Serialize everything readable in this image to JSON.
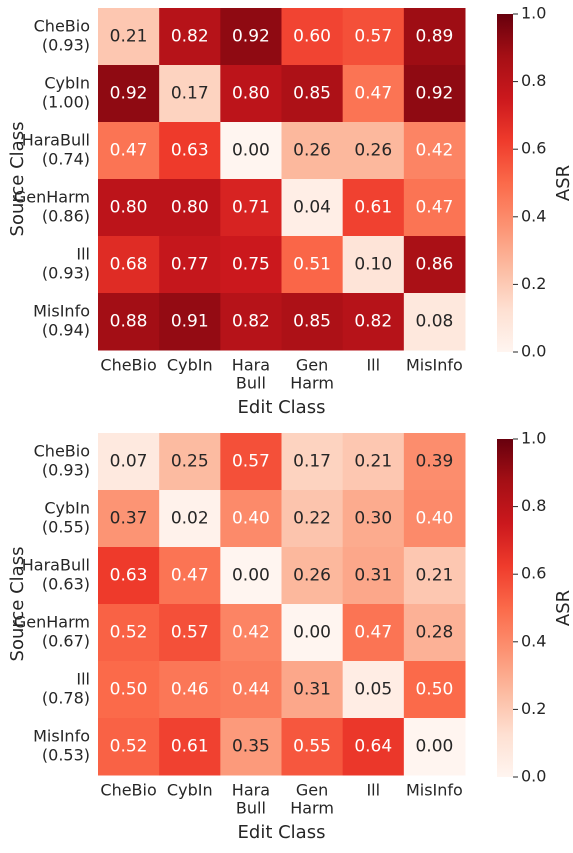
{
  "chart_data": [
    {
      "type": "heatmap",
      "xlabel": "Edit Class",
      "ylabel": "Source Class",
      "colorbar_label": "ASR",
      "colormap": "Reds",
      "x_categories": [
        [
          "CheBio"
        ],
        [
          "CybIn"
        ],
        [
          "Hara",
          "Bull"
        ],
        [
          "Gen",
          "Harm"
        ],
        [
          "Ill"
        ],
        [
          "MisInfo"
        ]
      ],
      "y_categories": [
        [
          "CheBio",
          "(0.93)"
        ],
        [
          "CybIn",
          "(1.00)"
        ],
        [
          "HaraBull",
          "(0.74)"
        ],
        [
          "GenHarm",
          "(0.86)"
        ],
        [
          "Ill",
          "(0.93)"
        ],
        [
          "MisInfo",
          "(0.94)"
        ]
      ],
      "values": [
        [
          0.21,
          0.82,
          0.92,
          0.6,
          0.57,
          0.89
        ],
        [
          0.92,
          0.17,
          0.8,
          0.85,
          0.47,
          0.92
        ],
        [
          0.47,
          0.63,
          0.0,
          0.26,
          0.26,
          0.42
        ],
        [
          0.8,
          0.8,
          0.71,
          0.04,
          0.61,
          0.47
        ],
        [
          0.68,
          0.77,
          0.75,
          0.51,
          0.1,
          0.86
        ],
        [
          0.88,
          0.91,
          0.82,
          0.85,
          0.82,
          0.08
        ]
      ],
      "value_labels": [
        [
          "0.21",
          "0.82",
          "0.92",
          "0.60",
          "0.57",
          "0.89"
        ],
        [
          "0.92",
          "0.17",
          "0.80",
          "0.85",
          "0.47",
          "0.92"
        ],
        [
          "0.47",
          "0.63",
          "0.00",
          "0.26",
          "0.26",
          "0.42"
        ],
        [
          "0.80",
          "0.80",
          "0.71",
          "0.04",
          "0.61",
          "0.47"
        ],
        [
          "0.68",
          "0.77",
          "0.75",
          "0.51",
          "0.10",
          "0.86"
        ],
        [
          "0.88",
          "0.91",
          "0.82",
          "0.85",
          "0.82",
          "0.08"
        ]
      ],
      "zlim": [
        0,
        1
      ],
      "zticks": [
        {
          "value": 0,
          "label": "0.0"
        },
        0.2,
        0.4,
        0.6,
        0.8,
        {
          "value": 1,
          "label": "1.0"
        }
      ]
    },
    {
      "type": "heatmap",
      "xlabel": "Edit Class",
      "ylabel": "Source Class",
      "colorbar_label": "ASR",
      "colormap": "Reds",
      "x_categories": [
        [
          "CheBio"
        ],
        [
          "CybIn"
        ],
        [
          "Hara",
          "Bull"
        ],
        [
          "Gen",
          "Harm"
        ],
        [
          "Ill"
        ],
        [
          "MisInfo"
        ]
      ],
      "y_categories": [
        [
          "CheBio",
          "(0.93)"
        ],
        [
          "CybIn",
          "(0.55)"
        ],
        [
          "HaraBull",
          "(0.63)"
        ],
        [
          "GenHarm",
          "(0.67)"
        ],
        [
          "Ill",
          "(0.78)"
        ],
        [
          "MisInfo",
          "(0.53)"
        ]
      ],
      "values": [
        [
          0.07,
          0.25,
          0.57,
          0.17,
          0.21,
          0.39
        ],
        [
          0.37,
          0.02,
          0.4,
          0.22,
          0.3,
          0.4
        ],
        [
          0.63,
          0.47,
          0.0,
          0.26,
          0.31,
          0.21
        ],
        [
          0.52,
          0.57,
          0.42,
          0.0,
          0.47,
          0.28
        ],
        [
          0.5,
          0.46,
          0.44,
          0.31,
          0.05,
          0.5
        ],
        [
          0.52,
          0.61,
          0.35,
          0.55,
          0.64,
          0.0
        ]
      ],
      "value_labels": [
        [
          "0.07",
          "0.25",
          "0.57",
          "0.17",
          "0.21",
          "0.39"
        ],
        [
          "0.37",
          "0.02",
          "0.40",
          "0.22",
          "0.30",
          "0.40"
        ],
        [
          "0.63",
          "0.47",
          "0.00",
          "0.26",
          "0.31",
          "0.21"
        ],
        [
          "0.52",
          "0.57",
          "0.42",
          "0.00",
          "0.47",
          "0.28"
        ],
        [
          "0.50",
          "0.46",
          "0.44",
          "0.31",
          "0.05",
          "0.50"
        ],
        [
          "0.52",
          "0.61",
          "0.35",
          "0.55",
          "0.64",
          "0.00"
        ]
      ],
      "zlim": [
        0,
        1
      ],
      "zticks": [
        {
          "value": 0,
          "label": "0.0"
        },
        0.2,
        0.4,
        0.6,
        0.8,
        {
          "value": 1,
          "label": "1.0"
        }
      ]
    }
  ]
}
